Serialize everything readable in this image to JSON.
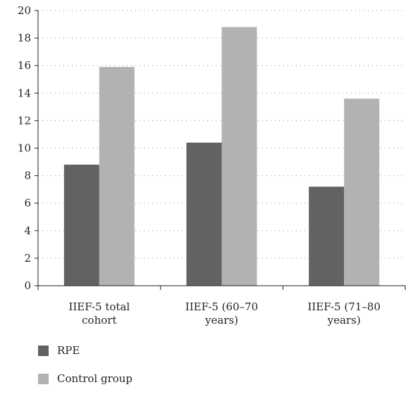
{
  "chart_data": {
    "type": "bar",
    "categories": [
      [
        "IIEF-5 total",
        "cohort"
      ],
      [
        "IIEF-5 (60–70",
        "years)"
      ],
      [
        "IIEF-5 (71–80",
        "years)"
      ]
    ],
    "series": [
      {
        "name": "RPE",
        "values": [
          8.8,
          10.4,
          7.2
        ],
        "color": "#626262"
      },
      {
        "name": "Control group",
        "values": [
          15.9,
          18.8,
          13.6
        ],
        "color": "#b2b2b2"
      }
    ],
    "title": "",
    "xlabel": "",
    "ylabel": "",
    "ylim": [
      0,
      20
    ],
    "yticks": [
      0,
      2,
      4,
      6,
      8,
      10,
      12,
      14,
      16,
      18,
      20
    ],
    "grid": "dotted horizontal",
    "legend_position": "bottom-left"
  }
}
